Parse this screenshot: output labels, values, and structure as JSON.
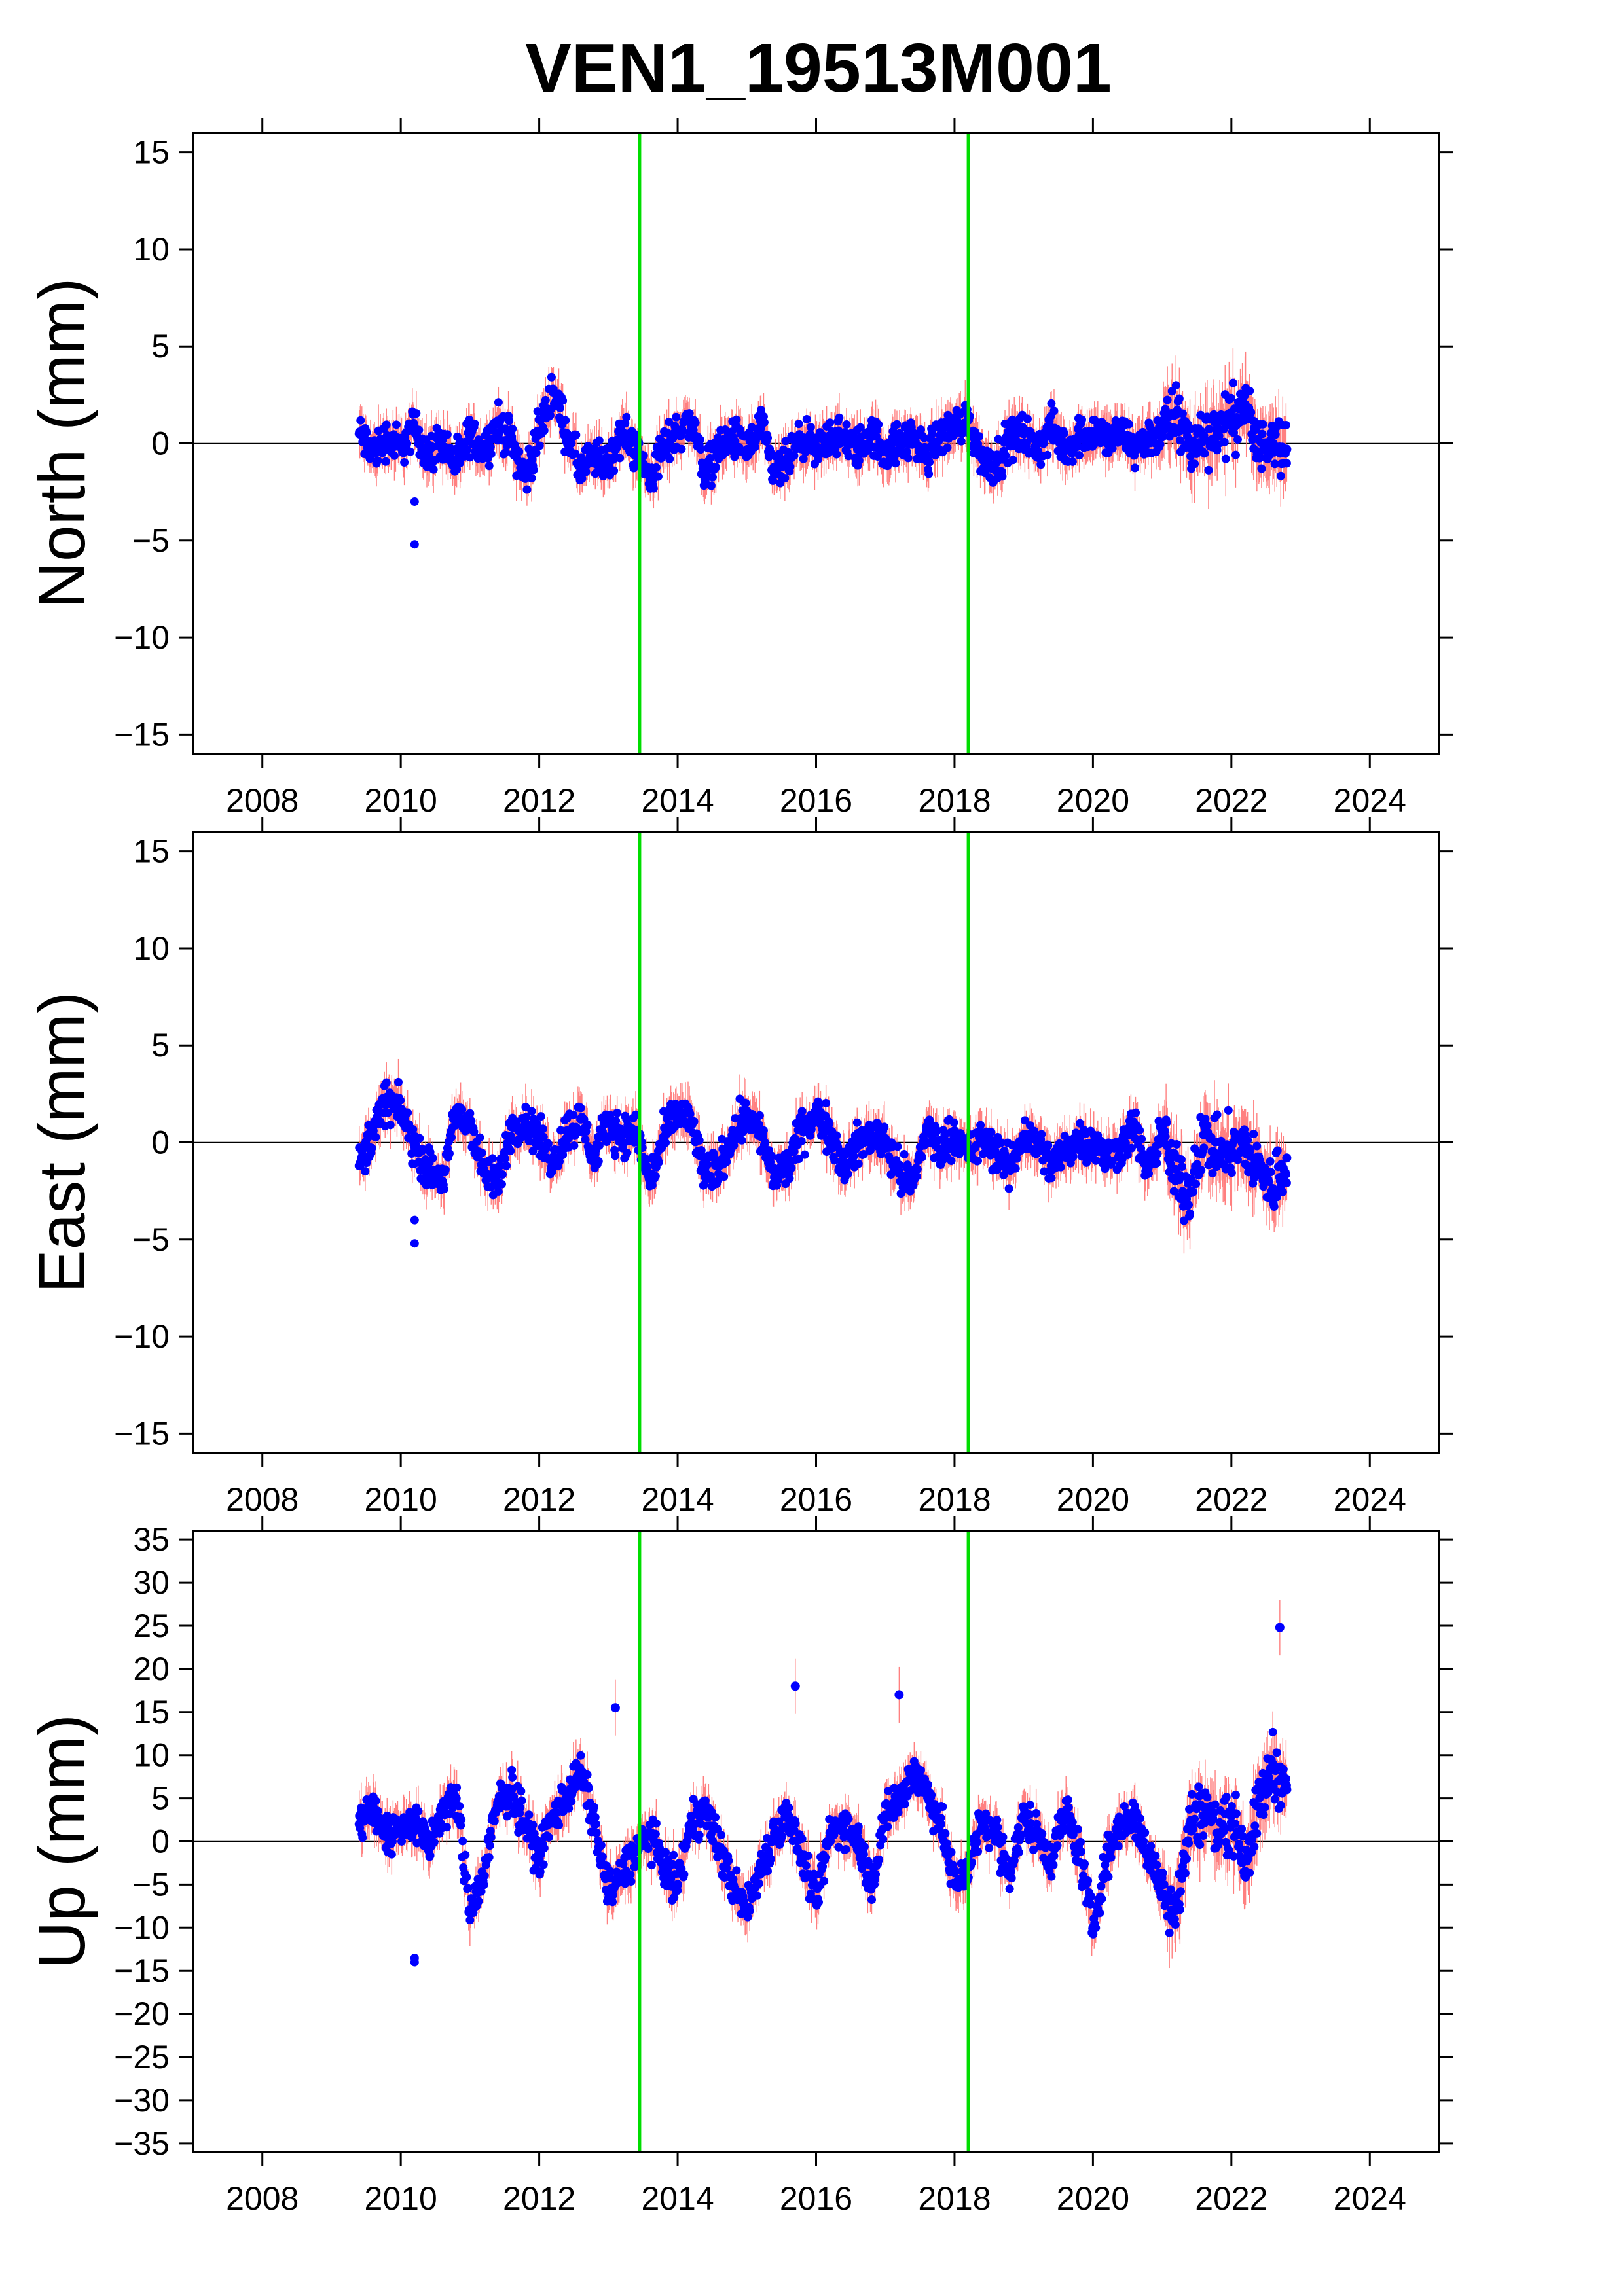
{
  "title": "VEN1_19513M001",
  "colors": {
    "points": "#0000ff",
    "error_bars": "#ff6a6a",
    "events": "#00dd00",
    "frame": "#000000",
    "zero_line": "#000000"
  },
  "chart_data": [
    {
      "type": "scatter",
      "ylabel": "North (mm)",
      "xlim": [
        2007,
        2025
      ],
      "ylim": [
        -16,
        16
      ],
      "xticks": [
        2008,
        2010,
        2012,
        2014,
        2016,
        2018,
        2020,
        2022,
        2024
      ],
      "yticks": [
        -15,
        -10,
        -5,
        0,
        5,
        10,
        15
      ],
      "event_lines": [
        2013.45,
        2018.2
      ],
      "grid": false,
      "error_bars": true,
      "x": [
        2009.4,
        2009.6,
        2009.8,
        2010.0,
        2010.2,
        2010.4,
        2010.6,
        2010.8,
        2011.0,
        2011.2,
        2011.4,
        2011.6,
        2011.8,
        2012.0,
        2012.2,
        2012.4,
        2012.6,
        2012.8,
        2013.0,
        2013.2,
        2013.4,
        2013.6,
        2013.8,
        2014.0,
        2014.2,
        2014.4,
        2014.6,
        2014.8,
        2015.0,
        2015.2,
        2015.4,
        2015.6,
        2015.8,
        2016.0,
        2016.2,
        2016.4,
        2016.6,
        2016.8,
        2017.0,
        2017.2,
        2017.4,
        2017.6,
        2017.8,
        2018.0,
        2018.2,
        2018.4,
        2018.6,
        2018.8,
        2019.0,
        2019.2,
        2019.4,
        2019.6,
        2019.8,
        2020.0,
        2020.2,
        2020.4,
        2020.6,
        2020.8,
        2021.0,
        2021.2,
        2021.4,
        2021.6,
        2021.8,
        2022.0,
        2022.2,
        2022.4,
        2022.6,
        2022.8
      ],
      "y": [
        0.5,
        -0.5,
        0.3,
        -0.2,
        0.8,
        -0.6,
        0.2,
        -1.2,
        0.4,
        -0.3,
        1.0,
        0.2,
        -1.8,
        0.6,
        2.8,
        0.5,
        -1.4,
        -0.8,
        -1.0,
        0.6,
        -0.4,
        -1.8,
        -0.2,
        0.6,
        1.2,
        -1.5,
        -0.2,
        0.3,
        -0.4,
        0.8,
        -1.6,
        -0.9,
        0.2,
        -0.5,
        0.4,
        0.2,
        -0.3,
        0.5,
        -0.4,
        0.0,
        0.3,
        -0.6,
        0.4,
        0.9,
        1.2,
        -0.8,
        -1.0,
        0.2,
        0.5,
        -0.4,
        0.8,
        -0.3,
        0.4,
        0.6,
        0.2,
        0.5,
        -0.2,
        0.3,
        0.6,
        1.5,
        -0.2,
        0.4,
        0.8,
        1.2,
        2.0,
        -0.5,
        0.6,
        -0.3
      ],
      "y_range_at_x": [
        [
          -3,
          3
        ],
        [
          -5.2,
          2.8
        ]
      ]
    },
    {
      "type": "scatter",
      "ylabel": "East (mm)",
      "xlim": [
        2007,
        2025
      ],
      "ylim": [
        -16,
        16
      ],
      "xticks": [
        2008,
        2010,
        2012,
        2014,
        2016,
        2018,
        2020,
        2022,
        2024
      ],
      "yticks": [
        -15,
        -10,
        -5,
        0,
        5,
        10,
        15
      ],
      "event_lines": [
        2013.45,
        2018.2
      ],
      "grid": false,
      "error_bars": true,
      "x": [
        2009.4,
        2009.6,
        2009.8,
        2010.0,
        2010.2,
        2010.4,
        2010.6,
        2010.8,
        2011.0,
        2011.2,
        2011.4,
        2011.6,
        2011.8,
        2012.0,
        2012.2,
        2012.4,
        2012.6,
        2012.8,
        2013.0,
        2013.2,
        2013.4,
        2013.6,
        2013.8,
        2014.0,
        2014.2,
        2014.4,
        2014.6,
        2014.8,
        2015.0,
        2015.2,
        2015.4,
        2015.6,
        2015.8,
        2016.0,
        2016.2,
        2016.4,
        2016.6,
        2016.8,
        2017.0,
        2017.2,
        2017.4,
        2017.6,
        2017.8,
        2018.0,
        2018.2,
        2018.4,
        2018.6,
        2018.8,
        2019.0,
        2019.2,
        2019.4,
        2019.6,
        2019.8,
        2020.0,
        2020.2,
        2020.4,
        2020.6,
        2020.8,
        2021.0,
        2021.2,
        2021.4,
        2021.6,
        2021.8,
        2022.0,
        2022.2,
        2022.4,
        2022.6,
        2022.8
      ],
      "y": [
        -1.2,
        0.6,
        2.2,
        1.6,
        -0.2,
        -1.4,
        -2.0,
        1.4,
        1.0,
        -1.6,
        -2.2,
        0.8,
        1.0,
        0.2,
        -1.0,
        0.6,
        1.2,
        -0.8,
        1.0,
        0.4,
        0.6,
        -2.0,
        0.2,
        1.6,
        1.0,
        -1.8,
        -1.2,
        0.4,
        1.6,
        0.4,
        -1.8,
        -1.2,
        0.6,
        1.4,
        0.6,
        -1.2,
        -0.2,
        0.4,
        0.2,
        -1.6,
        -2.2,
        0.8,
        -0.4,
        0.6,
        -0.8,
        0.2,
        -0.6,
        -1.4,
        0.4,
        0.0,
        -1.2,
        -0.4,
        0.2,
        0.0,
        -0.8,
        -0.2,
        0.8,
        -1.6,
        0.6,
        -1.8,
        -2.6,
        0.4,
        -0.6,
        -0.4,
        -0.2,
        -1.4,
        -2.4,
        -0.8
      ],
      "y_range_at_x": [
        [
          -4,
          4
        ],
        [
          -5.2,
          3.8
        ]
      ]
    },
    {
      "type": "scatter",
      "ylabel": "Up (mm)",
      "xlim": [
        2007,
        2025
      ],
      "ylim": [
        -36,
        36
      ],
      "xticks": [
        2008,
        2010,
        2012,
        2014,
        2016,
        2018,
        2020,
        2022,
        2024
      ],
      "yticks": [
        -35,
        -30,
        -25,
        -20,
        -15,
        -10,
        -5,
        0,
        5,
        10,
        15,
        20,
        25,
        30,
        35
      ],
      "event_lines": [
        2013.45,
        2018.2
      ],
      "grid": false,
      "error_bars": true,
      "x": [
        2009.4,
        2009.6,
        2009.8,
        2010.0,
        2010.2,
        2010.4,
        2010.6,
        2010.8,
        2011.0,
        2011.2,
        2011.4,
        2011.6,
        2011.8,
        2012.0,
        2012.2,
        2012.4,
        2012.6,
        2012.8,
        2013.0,
        2013.2,
        2013.4,
        2013.6,
        2013.8,
        2014.0,
        2014.2,
        2014.4,
        2014.6,
        2014.8,
        2015.0,
        2015.2,
        2015.4,
        2015.6,
        2015.8,
        2016.0,
        2016.2,
        2016.4,
        2016.6,
        2016.8,
        2017.0,
        2017.2,
        2017.4,
        2017.6,
        2017.8,
        2018.0,
        2018.2,
        2018.4,
        2018.6,
        2018.8,
        2019.0,
        2019.2,
        2019.4,
        2019.6,
        2019.8,
        2020.0,
        2020.2,
        2020.4,
        2020.6,
        2020.8,
        2021.0,
        2021.2,
        2021.4,
        2021.6,
        2021.8,
        2022.0,
        2022.2,
        2022.4,
        2022.6,
        2022.8
      ],
      "y": [
        2.0,
        4.0,
        0.5,
        1.5,
        2.5,
        -1.0,
        3.5,
        5.0,
        -8.0,
        -4.0,
        4.5,
        6.0,
        2.0,
        -2.0,
        3.0,
        5.5,
        8.0,
        2.0,
        -6.0,
        -4.0,
        -1.0,
        1.0,
        -3.0,
        -5.0,
        2.0,
        4.0,
        -1.0,
        -5.0,
        -8.0,
        -3.0,
        1.0,
        3.0,
        -2.0,
        -7.0,
        1.0,
        2.0,
        0.5,
        -5.0,
        3.0,
        5.0,
        8.0,
        6.0,
        2.0,
        -5.0,
        -3.0,
        2.5,
        1.0,
        -4.0,
        3.0,
        1.0,
        -2.0,
        3.5,
        -1.0,
        -10.0,
        -2.0,
        2.0,
        3.0,
        -2.0,
        -5.0,
        -8.0,
        2.0,
        4.0,
        1.0,
        3.0,
        -2.0,
        4.0,
        9.0,
        6.0
      ],
      "outliers": [
        [
          2013.1,
          15.5
        ],
        [
          2015.7,
          18.0
        ],
        [
          2017.2,
          17.0
        ],
        [
          2022.7,
          24.8
        ]
      ],
      "y_range_at_x": [
        [
          -14,
          14
        ],
        [
          -13.5,
          14
        ]
      ]
    }
  ]
}
